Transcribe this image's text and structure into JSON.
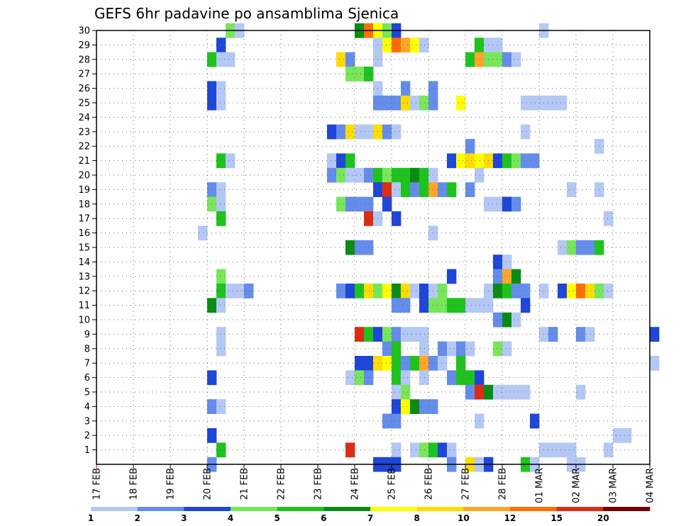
{
  "chart_data": {
    "type": "heatmap",
    "title": "GEFS 6hr padavine po ansamblima Sjenica",
    "x_ticks": [
      "17 FEB",
      "18 FEB",
      "19 FEB",
      "20 FEB",
      "21 FEB",
      "22 FEB",
      "23 FEB",
      "24 FEB",
      "25 FEB",
      "26 FEB",
      "27 FEB",
      "28 FEB",
      "01 MAR",
      "02 MAR",
      "03 MAR",
      "04 MAR"
    ],
    "y_ticks": [
      "1",
      "2",
      "3",
      "4",
      "5",
      "6",
      "7",
      "8",
      "9",
      "10",
      "11",
      "12",
      "13",
      "14",
      "15",
      "16",
      "17",
      "18",
      "19",
      "20",
      "21",
      "22",
      "23",
      "24",
      "25",
      "26",
      "27",
      "28",
      "29",
      "30"
    ],
    "y_range": [
      0,
      30
    ],
    "steps_per_day": 4,
    "grid": "dotted",
    "legend": "bottom",
    "legend_ticks": [
      "1",
      "2",
      "3",
      "4",
      "5",
      "6",
      "7",
      "8",
      "10",
      "12",
      "15",
      "20"
    ],
    "legend_colors": [
      "#b4c8f5",
      "#648ceb",
      "#1e46d7",
      "#78e65a",
      "#1ec31e",
      "#0a8c14",
      "#ffff00",
      "#ffdc00",
      "#ffa528",
      "#ff6e00",
      "#dc2d14",
      "#780000"
    ],
    "cells": [
      [
        30,
        14,
        4
      ],
      [
        30,
        15,
        1
      ],
      [
        30,
        28,
        6
      ],
      [
        30,
        29,
        10
      ],
      [
        30,
        30,
        7
      ],
      [
        30,
        31,
        4
      ],
      [
        30,
        32,
        3
      ],
      [
        30,
        48,
        1
      ],
      [
        29,
        13,
        3
      ],
      [
        29,
        30,
        1
      ],
      [
        29,
        31,
        7
      ],
      [
        29,
        32,
        10
      ],
      [
        29,
        33,
        9
      ],
      [
        29,
        34,
        7
      ],
      [
        29,
        35,
        1
      ],
      [
        29,
        41,
        5
      ],
      [
        29,
        42,
        1
      ],
      [
        29,
        43,
        1
      ],
      [
        28,
        12,
        5
      ],
      [
        28,
        13,
        1
      ],
      [
        28,
        14,
        1
      ],
      [
        28,
        26,
        8
      ],
      [
        28,
        27,
        2
      ],
      [
        28,
        30,
        1
      ],
      [
        28,
        40,
        5
      ],
      [
        28,
        41,
        9
      ],
      [
        28,
        42,
        4
      ],
      [
        28,
        43,
        4
      ],
      [
        28,
        44,
        2
      ],
      [
        28,
        45,
        1
      ],
      [
        27,
        27,
        4
      ],
      [
        27,
        28,
        4
      ],
      [
        27,
        29,
        5
      ],
      [
        26,
        12,
        3
      ],
      [
        26,
        13,
        1
      ],
      [
        26,
        30,
        1
      ],
      [
        26,
        33,
        2
      ],
      [
        26,
        36,
        2
      ],
      [
        25,
        12,
        3
      ],
      [
        25,
        13,
        1
      ],
      [
        25,
        30,
        2
      ],
      [
        25,
        31,
        2
      ],
      [
        25,
        32,
        2
      ],
      [
        25,
        33,
        8
      ],
      [
        25,
        34,
        1
      ],
      [
        25,
        35,
        4
      ],
      [
        25,
        36,
        2
      ],
      [
        25,
        39,
        7
      ],
      [
        25,
        46,
        1
      ],
      [
        25,
        47,
        1
      ],
      [
        25,
        48,
        1
      ],
      [
        25,
        49,
        1
      ],
      [
        25,
        50,
        1
      ],
      [
        23,
        25,
        3
      ],
      [
        23,
        26,
        2
      ],
      [
        23,
        27,
        8
      ],
      [
        23,
        28,
        1
      ],
      [
        23,
        29,
        1
      ],
      [
        23,
        30,
        8
      ],
      [
        23,
        31,
        2
      ],
      [
        23,
        32,
        1
      ],
      [
        23,
        46,
        1
      ],
      [
        22,
        40,
        2
      ],
      [
        22,
        54,
        1
      ],
      [
        21,
        13,
        5
      ],
      [
        21,
        14,
        1
      ],
      [
        21,
        25,
        1
      ],
      [
        21,
        26,
        3
      ],
      [
        21,
        27,
        5
      ],
      [
        21,
        38,
        3
      ],
      [
        21,
        39,
        7
      ],
      [
        21,
        40,
        8
      ],
      [
        21,
        41,
        7
      ],
      [
        21,
        42,
        8
      ],
      [
        21,
        43,
        3
      ],
      [
        21,
        44,
        5
      ],
      [
        21,
        45,
        4
      ],
      [
        21,
        46,
        2
      ],
      [
        21,
        47,
        2
      ],
      [
        20,
        25,
        2
      ],
      [
        20,
        26,
        4
      ],
      [
        20,
        27,
        1
      ],
      [
        20,
        28,
        1
      ],
      [
        20,
        29,
        2
      ],
      [
        20,
        30,
        5
      ],
      [
        20,
        31,
        4
      ],
      [
        20,
        32,
        5
      ],
      [
        20,
        33,
        5
      ],
      [
        20,
        34,
        6
      ],
      [
        20,
        35,
        5
      ],
      [
        20,
        36,
        1
      ],
      [
        20,
        41,
        1
      ],
      [
        19,
        12,
        2
      ],
      [
        19,
        13,
        1
      ],
      [
        19,
        30,
        3
      ],
      [
        19,
        31,
        11
      ],
      [
        19,
        32,
        1
      ],
      [
        19,
        33,
        5
      ],
      [
        19,
        34,
        2
      ],
      [
        19,
        35,
        5
      ],
      [
        19,
        36,
        9
      ],
      [
        19,
        37,
        2
      ],
      [
        19,
        38,
        5
      ],
      [
        19,
        40,
        2
      ],
      [
        19,
        51,
        1
      ],
      [
        19,
        54,
        1
      ],
      [
        18,
        12,
        4
      ],
      [
        18,
        13,
        1
      ],
      [
        18,
        26,
        4
      ],
      [
        18,
        27,
        2
      ],
      [
        18,
        28,
        2
      ],
      [
        18,
        29,
        2
      ],
      [
        18,
        31,
        3
      ],
      [
        18,
        42,
        1
      ],
      [
        18,
        43,
        1
      ],
      [
        18,
        44,
        3
      ],
      [
        18,
        45,
        2
      ],
      [
        17,
        13,
        5
      ],
      [
        17,
        29,
        11
      ],
      [
        17,
        30,
        1
      ],
      [
        17,
        32,
        3
      ],
      [
        17,
        55,
        1
      ],
      [
        16,
        11,
        1
      ],
      [
        16,
        36,
        1
      ],
      [
        15,
        27,
        6
      ],
      [
        15,
        28,
        2
      ],
      [
        15,
        29,
        2
      ],
      [
        15,
        50,
        1
      ],
      [
        15,
        51,
        4
      ],
      [
        15,
        52,
        2
      ],
      [
        15,
        53,
        2
      ],
      [
        15,
        54,
        5
      ],
      [
        14,
        43,
        3
      ],
      [
        14,
        44,
        1
      ],
      [
        13,
        13,
        4
      ],
      [
        13,
        38,
        3
      ],
      [
        13,
        43,
        2
      ],
      [
        13,
        44,
        9
      ],
      [
        13,
        45,
        6
      ],
      [
        12,
        13,
        5
      ],
      [
        12,
        14,
        1
      ],
      [
        12,
        15,
        1
      ],
      [
        12,
        16,
        2
      ],
      [
        12,
        26,
        2
      ],
      [
        12,
        27,
        3
      ],
      [
        12,
        28,
        5
      ],
      [
        12,
        29,
        8
      ],
      [
        12,
        30,
        4
      ],
      [
        12,
        31,
        7
      ],
      [
        12,
        32,
        6
      ],
      [
        12,
        33,
        8
      ],
      [
        12,
        34,
        1
      ],
      [
        12,
        35,
        3
      ],
      [
        12,
        36,
        1
      ],
      [
        12,
        37,
        4
      ],
      [
        12,
        42,
        1
      ],
      [
        12,
        43,
        6
      ],
      [
        12,
        44,
        5
      ],
      [
        12,
        45,
        2
      ],
      [
        12,
        46,
        2
      ],
      [
        12,
        48,
        1
      ],
      [
        12,
        50,
        3
      ],
      [
        12,
        51,
        7
      ],
      [
        12,
        52,
        10
      ],
      [
        12,
        53,
        8
      ],
      [
        12,
        54,
        4
      ],
      [
        12,
        55,
        1
      ],
      [
        11,
        12,
        6
      ],
      [
        11,
        13,
        1
      ],
      [
        11,
        32,
        2
      ],
      [
        11,
        33,
        2
      ],
      [
        11,
        35,
        3
      ],
      [
        11,
        36,
        4
      ],
      [
        11,
        37,
        4
      ],
      [
        11,
        38,
        5
      ],
      [
        11,
        39,
        5
      ],
      [
        11,
        40,
        1
      ],
      [
        11,
        41,
        1
      ],
      [
        11,
        42,
        1
      ],
      [
        11,
        46,
        3
      ],
      [
        10,
        43,
        2
      ],
      [
        10,
        44,
        6
      ],
      [
        10,
        45,
        1
      ],
      [
        9,
        13,
        1
      ],
      [
        9,
        28,
        11
      ],
      [
        9,
        29,
        5
      ],
      [
        9,
        30,
        3
      ],
      [
        9,
        31,
        4
      ],
      [
        9,
        32,
        2
      ],
      [
        9,
        33,
        1
      ],
      [
        9,
        34,
        1
      ],
      [
        9,
        35,
        1
      ],
      [
        9,
        48,
        1
      ],
      [
        9,
        49,
        2
      ],
      [
        9,
        52,
        2
      ],
      [
        9,
        53,
        1
      ],
      [
        9,
        60,
        3
      ],
      [
        8,
        13,
        1
      ],
      [
        8,
        31,
        2
      ],
      [
        8,
        32,
        5
      ],
      [
        8,
        35,
        1
      ],
      [
        8,
        37,
        2
      ],
      [
        8,
        38,
        1
      ],
      [
        8,
        39,
        2
      ],
      [
        8,
        40,
        1
      ],
      [
        8,
        43,
        4
      ],
      [
        8,
        44,
        1
      ],
      [
        7,
        28,
        3
      ],
      [
        7,
        29,
        3
      ],
      [
        7,
        30,
        8
      ],
      [
        7,
        31,
        7
      ],
      [
        7,
        32,
        5
      ],
      [
        7,
        33,
        2
      ],
      [
        7,
        34,
        5
      ],
      [
        7,
        35,
        9
      ],
      [
        7,
        36,
        2
      ],
      [
        7,
        37,
        1
      ],
      [
        7,
        39,
        5
      ],
      [
        7,
        60,
        1
      ],
      [
        6,
        12,
        3
      ],
      [
        6,
        27,
        1
      ],
      [
        6,
        28,
        4
      ],
      [
        6,
        29,
        2
      ],
      [
        6,
        32,
        5
      ],
      [
        6,
        33,
        1
      ],
      [
        6,
        35,
        1
      ],
      [
        6,
        38,
        2
      ],
      [
        6,
        39,
        5
      ],
      [
        6,
        40,
        5
      ],
      [
        6,
        41,
        3
      ],
      [
        5,
        32,
        1
      ],
      [
        5,
        33,
        4
      ],
      [
        5,
        40,
        2
      ],
      [
        5,
        41,
        11
      ],
      [
        5,
        42,
        6
      ],
      [
        5,
        43,
        1
      ],
      [
        5,
        44,
        1
      ],
      [
        5,
        45,
        1
      ],
      [
        5,
        46,
        1
      ],
      [
        5,
        52,
        1
      ],
      [
        4,
        12,
        2
      ],
      [
        4,
        13,
        1
      ],
      [
        4,
        32,
        3
      ],
      [
        4,
        33,
        7
      ],
      [
        4,
        34,
        6
      ],
      [
        4,
        35,
        2
      ],
      [
        4,
        36,
        2
      ],
      [
        3,
        31,
        2
      ],
      [
        3,
        32,
        2
      ],
      [
        3,
        41,
        1
      ],
      [
        3,
        47,
        3
      ],
      [
        2,
        12,
        3
      ],
      [
        2,
        56,
        1
      ],
      [
        2,
        57,
        1
      ],
      [
        1,
        13,
        5
      ],
      [
        1,
        27,
        11
      ],
      [
        1,
        32,
        1
      ],
      [
        1,
        34,
        1
      ],
      [
        1,
        35,
        4
      ],
      [
        1,
        36,
        5
      ],
      [
        1,
        37,
        3
      ],
      [
        1,
        38,
        1
      ],
      [
        1,
        48,
        1
      ],
      [
        1,
        49,
        1
      ],
      [
        1,
        50,
        1
      ],
      [
        1,
        51,
        1
      ],
      [
        1,
        55,
        1
      ],
      [
        0,
        12,
        2
      ],
      [
        0,
        30,
        3
      ],
      [
        0,
        31,
        3
      ],
      [
        0,
        32,
        3
      ],
      [
        0,
        38,
        2
      ],
      [
        0,
        40,
        8
      ],
      [
        0,
        41,
        1
      ],
      [
        0,
        42,
        3
      ],
      [
        0,
        46,
        5
      ],
      [
        0,
        47,
        1
      ],
      [
        0,
        51,
        1
      ],
      [
        0,
        52,
        1
      ]
    ]
  }
}
